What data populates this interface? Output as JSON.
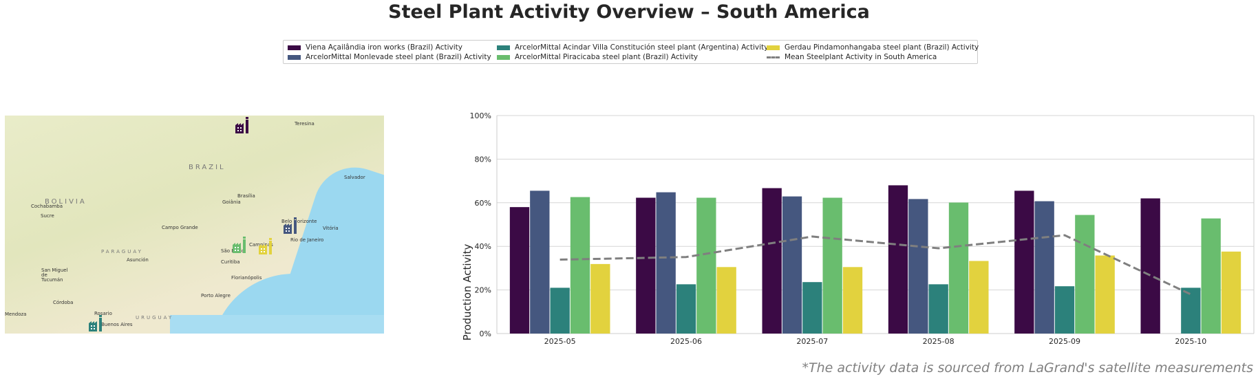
{
  "title": "Steel Plant Activity Overview – South America",
  "legend": {
    "placement": "top-center",
    "items": [
      {
        "label": "Viena Açailândia iron works (Brazil) Activity",
        "color": "#3b0a45",
        "style": "patch"
      },
      {
        "label": "ArcelorMittal Monlevade steel plant (Brazil) Activity",
        "color": "#45577f",
        "style": "patch"
      },
      {
        "label": "ArcelorMittal Acindar Villa Constitución steel plant (Argentina) Activity",
        "color": "#2c817b",
        "style": "patch"
      },
      {
        "label": "ArcelorMittal Piracicaba steel plant (Brazil) Activity",
        "color": "#69bd6e",
        "style": "patch"
      },
      {
        "label": "Gerdau Pindamonhangaba steel plant (Brazil) Activity",
        "color": "#e2d23e",
        "style": "patch"
      },
      {
        "label": "Mean Steelplant Activity in South America",
        "color": "#7f7f7f",
        "style": "dashed-line"
      }
    ]
  },
  "map": {
    "countries": [
      "BRAZIL",
      "BOLIVIA",
      "PARAGUAY",
      "URUGUAY"
    ],
    "cities": [
      "Teresina",
      "Salvador",
      "Brasília",
      "Goiânia",
      "Cochabamba",
      "Sucre",
      "Campo Grande",
      "Belo Horizonte",
      "Vitória",
      "Rio de Janeiro",
      "Campinas",
      "São Paulo",
      "Asunción",
      "Curitiba",
      "San Miguel de Tucumán",
      "Florianópolis",
      "Porto Alegre",
      "Córdoba",
      "Rosario",
      "Buenos Aires",
      "Mendoza"
    ],
    "plant_markers": [
      {
        "plant": "Viena Açailândia iron works (Brazil)",
        "color": "#3b0a45",
        "icon": "factory-icon"
      },
      {
        "plant": "ArcelorMittal Monlevade steel plant (Brazil)",
        "color": "#45577f",
        "icon": "factory-icon"
      },
      {
        "plant": "ArcelorMittal Acindar Villa Constitución steel plant (Argentina)",
        "color": "#2c817b",
        "icon": "factory-icon"
      },
      {
        "plant": "ArcelorMittal Piracicaba steel plant (Brazil)",
        "color": "#69bd6e",
        "icon": "factory-icon"
      },
      {
        "plant": "Gerdau Pindamonhangaba steel plant (Brazil)",
        "color": "#e2d23e",
        "icon": "factory-icon"
      }
    ]
  },
  "chart_data": {
    "type": "bar",
    "title": "",
    "xlabel": "",
    "ylabel": "Production Activity",
    "ylim": [
      0,
      100
    ],
    "yticks": [
      "0%",
      "20%",
      "40%",
      "60%",
      "80%",
      "100%"
    ],
    "grid": true,
    "categories": [
      "2025-05",
      "2025-06",
      "2025-07",
      "2025-08",
      "2025-09",
      "2025-10"
    ],
    "series": [
      {
        "name": "Viena Açailândia iron works (Brazil) Activity",
        "type": "bar",
        "color": "#3b0a45",
        "values": [
          58.0,
          62.3,
          66.7,
          68.0,
          65.5,
          62.0
        ]
      },
      {
        "name": "ArcelorMittal Monlevade steel plant (Brazil) Activity",
        "type": "bar",
        "color": "#45577f",
        "values": [
          65.5,
          64.8,
          62.9,
          61.7,
          60.7,
          null
        ]
      },
      {
        "name": "ArcelorMittal Acindar Villa Constitución steel plant (Argentina) Activity",
        "type": "bar",
        "color": "#2c817b",
        "values": [
          21.0,
          22.6,
          23.6,
          22.6,
          21.7,
          21.0
        ]
      },
      {
        "name": "ArcelorMittal Piracicaba steel plant (Brazil) Activity",
        "type": "bar",
        "color": "#69bd6e",
        "values": [
          62.6,
          62.3,
          62.3,
          60.1,
          54.4,
          52.8
        ]
      },
      {
        "name": "Gerdau Pindamonhangaba steel plant (Brazil) Activity",
        "type": "bar",
        "color": "#e2d23e",
        "values": [
          31.9,
          30.5,
          30.5,
          33.3,
          35.8,
          37.6
        ]
      },
      {
        "name": "Mean Steelplant Activity in South America",
        "type": "line",
        "style": "dashed",
        "color": "#7f7f7f",
        "values": [
          33.9,
          35.1,
          44.5,
          39.1,
          45.1,
          18.0
        ]
      }
    ]
  },
  "footnote": "*The activity data is sourced from LaGrand's satellite measurements"
}
